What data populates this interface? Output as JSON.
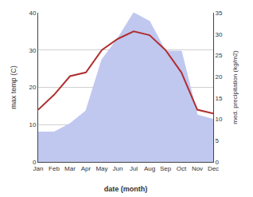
{
  "chart_data": {
    "type": "line",
    "categories": [
      "Jan",
      "Feb",
      "Mar",
      "Apr",
      "May",
      "Jun",
      "Jul",
      "Aug",
      "Sep",
      "Oct",
      "Nov",
      "Dec"
    ],
    "series": [
      {
        "type": "area",
        "color": "#c0c8f0",
        "axis": "y2",
        "values": [
          7,
          7,
          9,
          12,
          24,
          29,
          35,
          33,
          26,
          26,
          11,
          10
        ]
      },
      {
        "type": "line",
        "color": "#b03030",
        "values": [
          14,
          18,
          23,
          24,
          30,
          33,
          35,
          34,
          30,
          24,
          14,
          13
        ]
      }
    ],
    "xlabel": "date (month)",
    "ylabel": "max temp (C)",
    "y2label": "med. precipitation (kg/m2)",
    "ylim": [
      0,
      40
    ],
    "yticks": [
      0,
      10,
      20,
      30,
      40
    ],
    "y2lim": [
      0,
      35
    ],
    "y2ticks": [
      0,
      5,
      10,
      15,
      20,
      25,
      30,
      35
    ],
    "grid": true
  }
}
